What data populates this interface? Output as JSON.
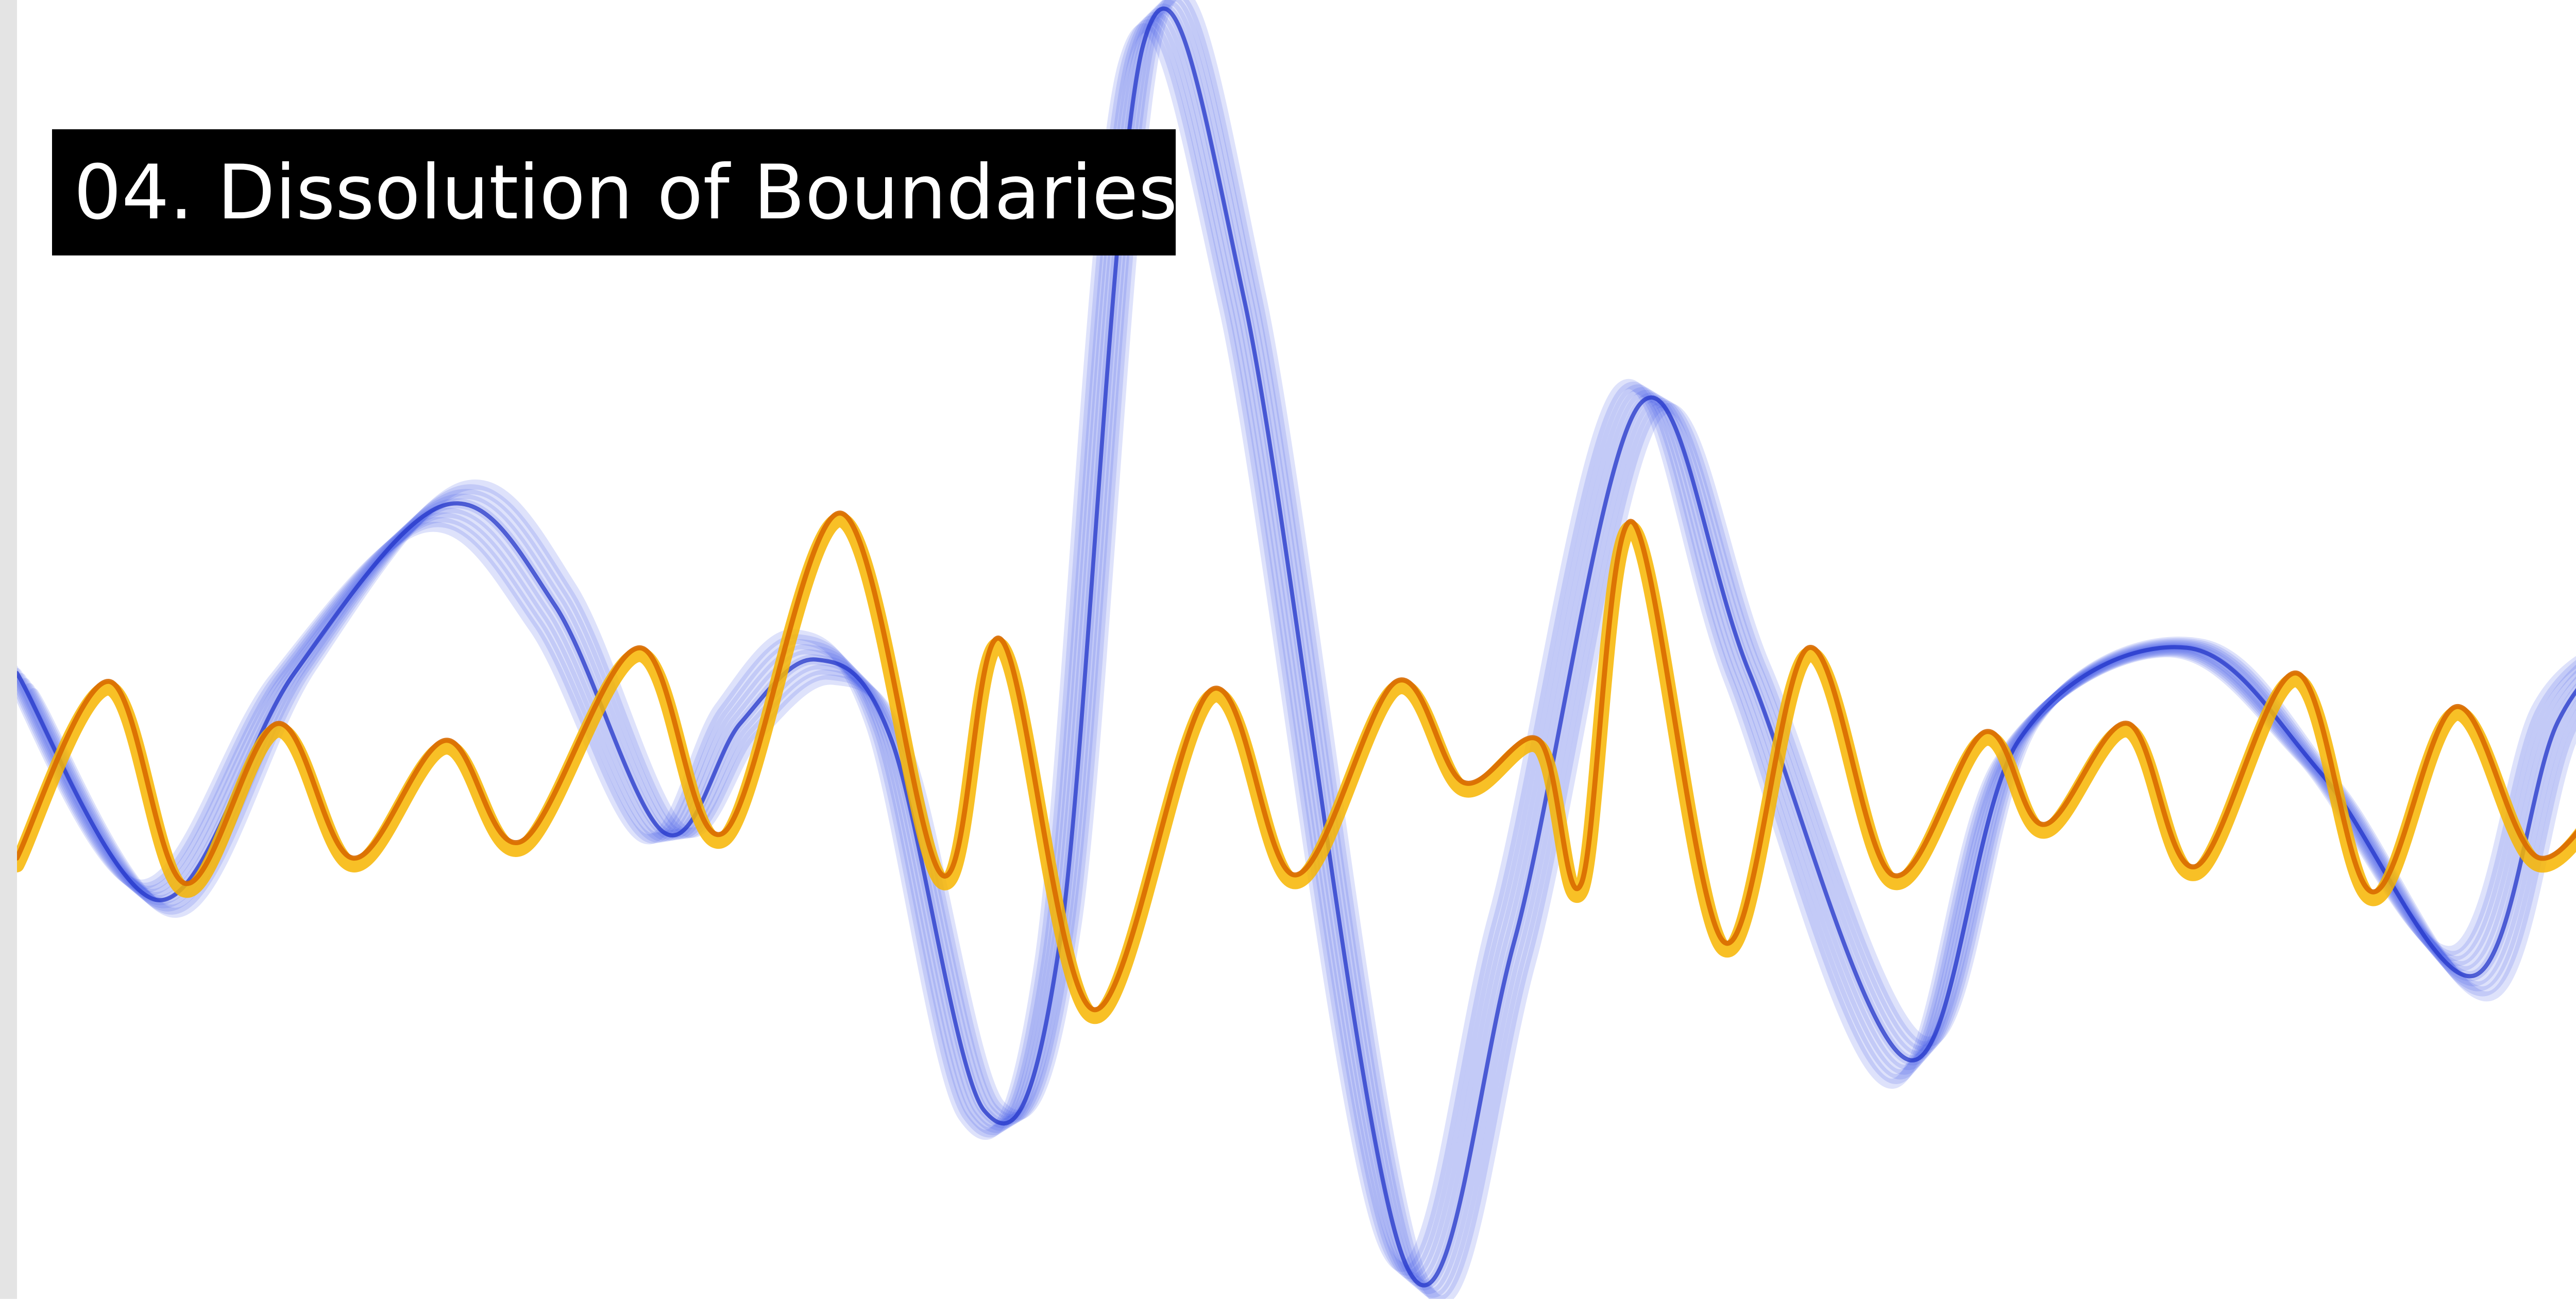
{
  "title": "04. Dissolution of Boundaries"
}
